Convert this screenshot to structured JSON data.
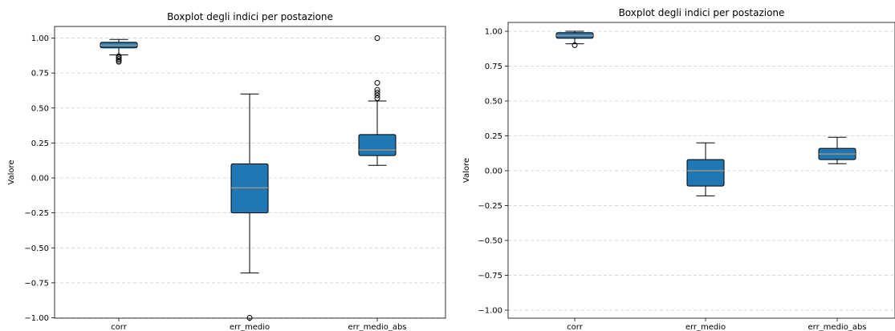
{
  "chart_data": [
    {
      "type": "boxplot",
      "title": "Boxplot degli indici per postazione",
      "ylabel": "Valore",
      "ylim": [
        -1.0,
        1.08
      ],
      "yticks": [
        "1.00",
        "0.75",
        "0.50",
        "0.25",
        "0.00",
        "−0.25",
        "−0.50",
        "−0.75",
        "−1.00"
      ],
      "grid": "y-dashed",
      "box_color": "#1f77b4",
      "categories": [
        "corr",
        "err_medio",
        "err_medio_abs"
      ],
      "boxes": [
        {
          "name": "corr",
          "whislo": 0.88,
          "q1": 0.93,
          "med": 0.95,
          "q3": 0.97,
          "whishi": 0.99,
          "fliers": [
            0.87,
            0.86,
            0.85,
            0.84,
            0.83
          ]
        },
        {
          "name": "err_medio",
          "whislo": -0.68,
          "q1": -0.25,
          "med": -0.07,
          "q3": 0.1,
          "whishi": 0.6,
          "fliers": [
            -1.0
          ]
        },
        {
          "name": "err_medio_abs",
          "whislo": 0.09,
          "q1": 0.16,
          "med": 0.2,
          "q3": 0.31,
          "whishi": 0.55,
          "fliers": [
            0.57,
            0.59,
            0.61,
            0.63,
            0.68,
            1.0
          ]
        }
      ]
    },
    {
      "type": "boxplot",
      "title": "Boxplot degli indici per postazione",
      "ylabel": "Valore",
      "ylim": [
        -1.03,
        1.03
      ],
      "yticks": [
        "1.00",
        "0.75",
        "0.50",
        "0.25",
        "0.00",
        "−0.25",
        "−0.50",
        "−0.75",
        "−1.00"
      ],
      "grid": "y-dashed",
      "box_color": "#1f77b4",
      "categories": [
        "corr",
        "err_medio",
        "err_medio_abs"
      ],
      "boxes": [
        {
          "name": "corr",
          "whislo": 0.91,
          "q1": 0.95,
          "med": 0.97,
          "q3": 0.99,
          "whishi": 1.0,
          "fliers": [
            0.9
          ]
        },
        {
          "name": "err_medio",
          "whislo": -0.18,
          "q1": -0.11,
          "med": 0.0,
          "q3": 0.08,
          "whishi": 0.2,
          "fliers": []
        },
        {
          "name": "err_medio_abs",
          "whislo": 0.05,
          "q1": 0.08,
          "med": 0.12,
          "q3": 0.16,
          "whishi": 0.24,
          "fliers": []
        }
      ]
    }
  ]
}
